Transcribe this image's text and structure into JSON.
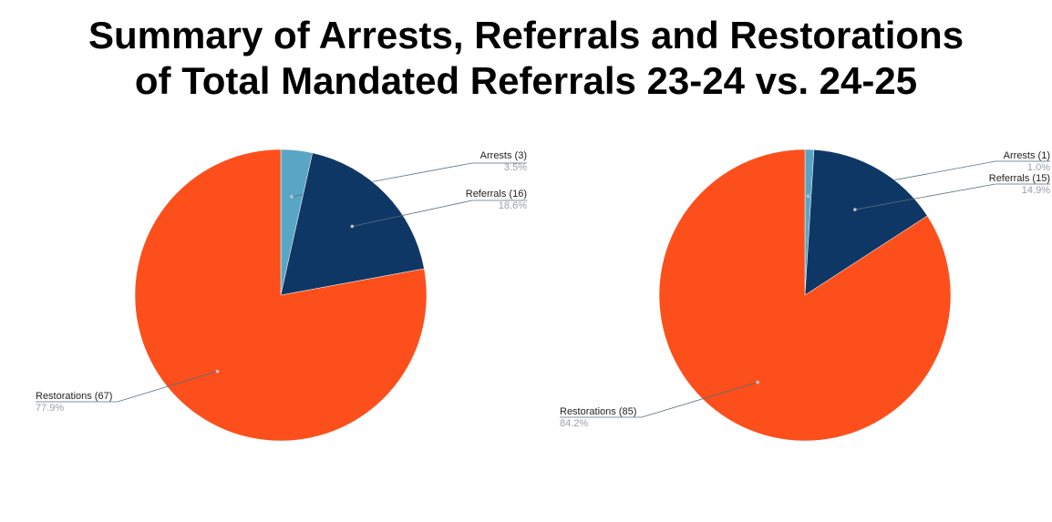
{
  "title": {
    "line1": "Summary of Arrests, Referrals and Restorations",
    "line2": "of Total Mandated Referrals 23-24 vs. 24-25"
  },
  "chart_data": [
    {
      "type": "pie",
      "slices": [
        {
          "label": "Arrests (3)",
          "value": 3,
          "percent": "3.5%",
          "color": "#58a6c4"
        },
        {
          "label": "Referrals (16)",
          "value": 16,
          "percent": "18.6%",
          "color": "#0f3766"
        },
        {
          "label": "Restorations (67)",
          "value": 67,
          "percent": "77.9%",
          "color": "#fc4f1c"
        }
      ]
    },
    {
      "type": "pie",
      "slices": [
        {
          "label": "Arrests (1)",
          "value": 1,
          "percent": "1.0%",
          "color": "#58a6c4"
        },
        {
          "label": "Referrals (15)",
          "value": 15,
          "percent": "14.9%",
          "color": "#0f3766"
        },
        {
          "label": "Restorations (85)",
          "value": 85,
          "percent": "84.2%",
          "color": "#fc4f1c"
        }
      ]
    }
  ]
}
